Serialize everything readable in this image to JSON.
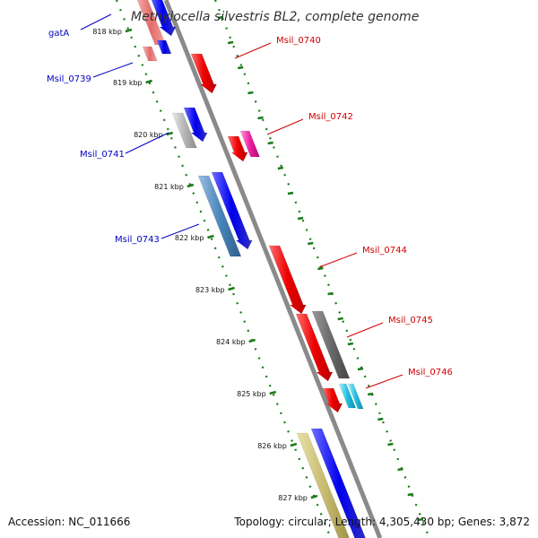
{
  "title": "Methylocella silvestris BL2, complete genome",
  "footer": {
    "accession": "Accession: NC_011666",
    "info": "Topology: circular; Length: 4,305,430 bp; Genes: 3,872"
  },
  "colors": {
    "backbone": "#8a8a8a",
    "tick": "#1a7a1a",
    "left_label": "#0000c0",
    "right_label": "#d00000"
  },
  "ticks": [
    {
      "label": "818 kbp"
    },
    {
      "label": "819 kbp"
    },
    {
      "label": "820 kbp"
    },
    {
      "label": "821 kbp"
    },
    {
      "label": "822 kbp"
    },
    {
      "label": "823 kbp"
    },
    {
      "label": "824 kbp"
    },
    {
      "label": "825 kbp"
    },
    {
      "label": "826 kbp"
    },
    {
      "label": "827 kbp"
    }
  ],
  "labels": [
    {
      "text": "gatA",
      "side": "left"
    },
    {
      "text": "Msil_0739",
      "side": "left"
    },
    {
      "text": "Msil_0741",
      "side": "left"
    },
    {
      "text": "Msil_0743",
      "side": "left"
    },
    {
      "text": "Msil_0740",
      "side": "right"
    },
    {
      "text": "Msil_0742",
      "side": "right"
    },
    {
      "text": "Msil_0744",
      "side": "right"
    },
    {
      "text": "Msil_0745",
      "side": "right"
    },
    {
      "text": "Msil_0746",
      "side": "right"
    }
  ]
}
